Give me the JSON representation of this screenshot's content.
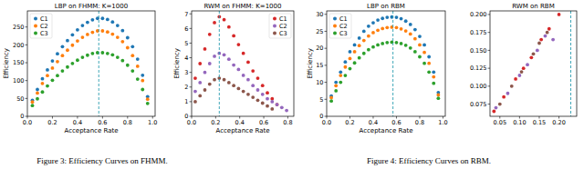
{
  "chart_data": [
    {
      "type": "scatter",
      "title": "LBP on FHMM: K=1000",
      "x_label": "Acceptance Rate",
      "y_label": "Efficiency",
      "grid": false,
      "legend": "upper left",
      "xlim": [
        0,
        1.02
      ],
      "ylim": [
        0,
        295
      ],
      "xticks": [
        {
          "value": 0,
          "label": "0.0"
        },
        0.2,
        0.4,
        0.6,
        0.8,
        {
          "value": 1,
          "label": "1.0"
        }
      ],
      "yticks": [
        0,
        50,
        100,
        150,
        200,
        250
      ],
      "vlines": [
        0.57
      ],
      "x": [
        0.04,
        0.08,
        0.12,
        0.16,
        0.2,
        0.24,
        0.28,
        0.32,
        0.36,
        0.4,
        0.44,
        0.48,
        0.52,
        0.56,
        0.6,
        0.64,
        0.68,
        0.72,
        0.76,
        0.8,
        0.84,
        0.88,
        0.92,
        0.96
      ],
      "series": [
        {
          "name": "C1",
          "color": "#1f77b4",
          "values": [
            45,
            75,
            105,
            130,
            155,
            175,
            195,
            212,
            228,
            242,
            254,
            263,
            270,
            274,
            274,
            271,
            264,
            254,
            240,
            220,
            195,
            160,
            115,
            55
          ]
        },
        {
          "name": "C2",
          "color": "#ff7f0e",
          "values": [
            40,
            65,
            92,
            114,
            135,
            153,
            170,
            185,
            199,
            211,
            221,
            229,
            235,
            239,
            239,
            236,
            230,
            221,
            209,
            192,
            170,
            140,
            100,
            48
          ]
        },
        {
          "name": "C3",
          "color": "#2ca02c",
          "values": [
            30,
            49,
            68,
            85,
            101,
            114,
            127,
            138,
            148,
            157,
            165,
            171,
            176,
            178,
            178,
            176,
            172,
            165,
            156,
            143,
            127,
            104,
            75,
            36
          ]
        }
      ]
    },
    {
      "type": "scatter",
      "title": "RWM on FHMM: K=1000",
      "x_label": "Acceptance Rate",
      "y_label": "Efficiency",
      "grid": false,
      "legend": "upper right",
      "xlim": [
        0,
        0.85
      ],
      "ylim": [
        0,
        7.2
      ],
      "xticks": [
        {
          "value": 0,
          "label": "0.0"
        },
        0.2,
        0.4,
        0.6,
        0.8
      ],
      "yticks": [
        0,
        1,
        2,
        3,
        4,
        5,
        6,
        7
      ],
      "vlines": [
        0.23
      ],
      "x": [
        0.03,
        0.07,
        0.11,
        0.15,
        0.19,
        0.23,
        0.27,
        0.31,
        0.35,
        0.39,
        0.43,
        0.47,
        0.51,
        0.55,
        0.59,
        0.63,
        0.67,
        0.71,
        0.75,
        0.79
      ],
      "series": [
        {
          "name": "C1",
          "color": "#d62728",
          "values": [
            2.6,
            3.6,
            4.6,
            5.6,
            6.4,
            6.8,
            6.6,
            6.1,
            5.5,
            4.9,
            4.3,
            3.7,
            3.1,
            2.6,
            2.1,
            1.6,
            1.2,
            0.8,
            null,
            null
          ]
        },
        {
          "name": "C2",
          "color": "#9467bd",
          "values": [
            1.7,
            2.3,
            3.0,
            3.6,
            4.1,
            4.3,
            4.2,
            3.9,
            3.5,
            3.2,
            2.8,
            2.5,
            2.1,
            1.8,
            1.5,
            1.2,
            1.0,
            0.8,
            0.6,
            0.4
          ]
        },
        {
          "name": "C3",
          "color": "#8c564b",
          "values": [
            1.0,
            1.4,
            1.8,
            2.2,
            2.5,
            2.6,
            2.5,
            2.3,
            2.1,
            1.9,
            1.7,
            1.5,
            1.3,
            1.1,
            0.9,
            0.7,
            0.5,
            null,
            null,
            null
          ]
        }
      ]
    },
    {
      "type": "scatter",
      "title": "LBP on RBM",
      "x_label": "Acceptance Rate",
      "y_label": "Efficiency",
      "grid": false,
      "legend": "upper left",
      "xlim": [
        0,
        1.02
      ],
      "ylim": [
        0,
        31
      ],
      "xticks": [
        {
          "value": 0,
          "label": "0.0"
        },
        0.2,
        0.4,
        0.6,
        0.8,
        {
          "value": 1,
          "label": "1.0"
        }
      ],
      "yticks": [
        0,
        5,
        10,
        15,
        20,
        25,
        30
      ],
      "vlines": [
        0.57
      ],
      "x": [
        0.04,
        0.08,
        0.12,
        0.16,
        0.2,
        0.24,
        0.28,
        0.32,
        0.36,
        0.4,
        0.44,
        0.48,
        0.52,
        0.56,
        0.6,
        0.64,
        0.68,
        0.72,
        0.76,
        0.8,
        0.84,
        0.88,
        0.92,
        0.96
      ],
      "series": [
        {
          "name": "C1",
          "color": "#1f77b4",
          "values": [
            6,
            10,
            13,
            16,
            19,
            21,
            23,
            25,
            26.5,
            27.5,
            28.3,
            28.8,
            29.1,
            29.2,
            29.1,
            28.7,
            28,
            27,
            25.5,
            23.5,
            21,
            17.5,
            13,
            7
          ]
        },
        {
          "name": "C2",
          "color": "#ff7f0e",
          "values": [
            5.5,
            9,
            12,
            14.5,
            17,
            19,
            20.8,
            22.3,
            23.6,
            24.6,
            25.3,
            25.8,
            26.1,
            26.2,
            26.1,
            25.7,
            25.1,
            24.2,
            22.8,
            21,
            18.8,
            15.6,
            11.6,
            6.3
          ]
        },
        {
          "name": "C3",
          "color": "#2ca02c",
          "values": [
            4.5,
            7.5,
            10,
            12,
            14,
            15.7,
            17.2,
            18.5,
            19.6,
            20.4,
            21,
            21.4,
            21.7,
            21.8,
            21.7,
            21.4,
            20.9,
            20.1,
            19,
            17.5,
            15.6,
            13,
            9.7,
            5.3
          ]
        }
      ]
    },
    {
      "type": "scatter",
      "title": "RWM on RBM",
      "grid": false,
      "xlim": [
        0.025,
        0.245
      ],
      "ylim": [
        0.058,
        0.205
      ],
      "xticks": [
        0.05,
        {
          "value": 0.1,
          "label": "0.10"
        },
        0.15,
        {
          "value": 0.2,
          "label": "0.20"
        }
      ],
      "yticks": [
        0.075,
        {
          "value": 0.1,
          "label": "0.100"
        },
        0.125,
        {
          "value": 0.15,
          "label": "0.150"
        },
        0.175,
        {
          "value": 0.2,
          "label": "0.200"
        }
      ],
      "vlines": [
        0.23
      ],
      "series": [
        {
          "color": "#d62728",
          "x": [
            0.035,
            0.06,
            0.09,
            0.11,
            0.13,
            0.155,
            0.175,
            0.2
          ],
          "values": [
            0.065,
            0.085,
            0.11,
            0.125,
            0.14,
            0.165,
            0.18,
            0.2
          ]
        },
        {
          "color": "#9467bd",
          "x": [
            0.04,
            0.07,
            0.1,
            0.12,
            0.145,
            0.165,
            0.185
          ],
          "values": [
            0.07,
            0.09,
            0.115,
            0.13,
            0.15,
            0.17,
            0.165
          ]
        },
        {
          "color": "#8c564b",
          "x": [
            0.05,
            0.08,
            0.105,
            0.135,
            0.15,
            0.17
          ],
          "values": [
            0.075,
            0.1,
            0.12,
            0.145,
            0.16,
            0.175
          ]
        }
      ]
    }
  ],
  "captions": [
    "Figure 3: Efficiency Curves on FHMM.",
    "Figure 4: Efficiency Curves on RBM."
  ]
}
